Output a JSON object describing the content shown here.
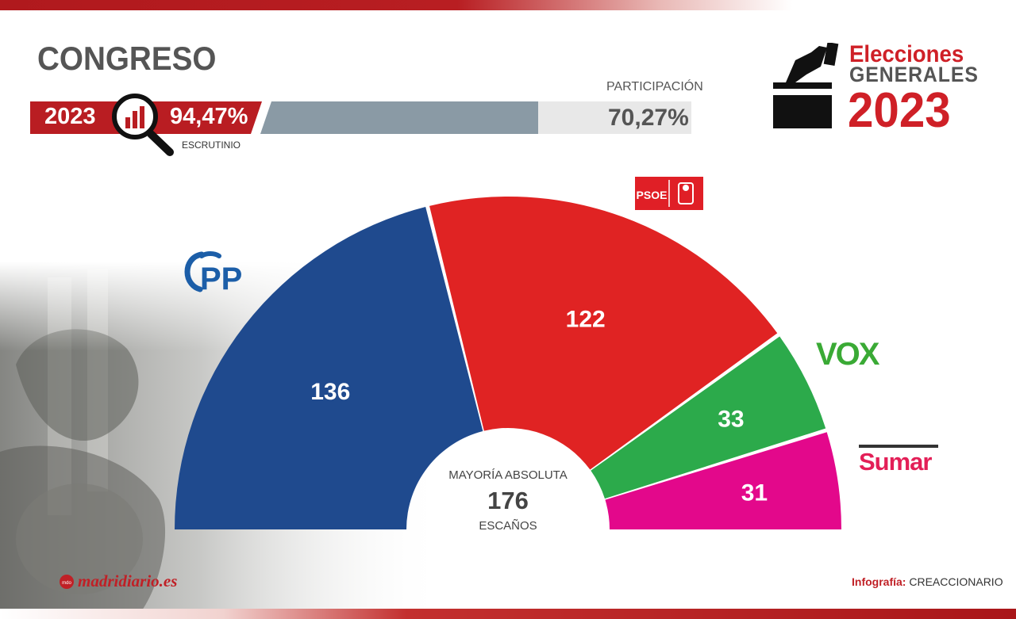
{
  "header": {
    "title": "CONGRESO",
    "scrutiny_year": "2023",
    "scrutiny_pct": "94,47%",
    "scrutiny_label": "ESCRUTINIO",
    "participation_label": "PARTICIPACIÓN",
    "participation_value": "70,27%",
    "participation_fraction": 0.7027
  },
  "brand": {
    "line1": "Elecciones",
    "line2": "GENERALES",
    "line3": "2023"
  },
  "chart_data": {
    "type": "pie",
    "subtype": "parliament-half-donut",
    "center": {
      "label_top": "MAYORÍA ABSOLUTA",
      "value": "176",
      "label_bottom": "ESCAÑOS"
    },
    "slices": [
      {
        "name": "PP",
        "value": 136,
        "color": "#1f4a8e"
      },
      {
        "name": "PSOE",
        "value": 122,
        "color": "#e02323"
      },
      {
        "name": "VOX",
        "value": 33,
        "color": "#2caa4b"
      },
      {
        "name": "Sumar",
        "value": 31,
        "color": "#e3088b"
      }
    ]
  },
  "logos": {
    "pp": "PP",
    "psoe": "PSOE",
    "vox": "VOX",
    "sumar": "Sumar"
  },
  "footer": {
    "source": "madridiario.es",
    "credit_label": "Infografía:",
    "credit_value": "CREACCIONARIO"
  },
  "colors": {
    "accent_red": "#cf2027",
    "gray_text": "#555555",
    "participation_bar": "#8a9aa5"
  }
}
